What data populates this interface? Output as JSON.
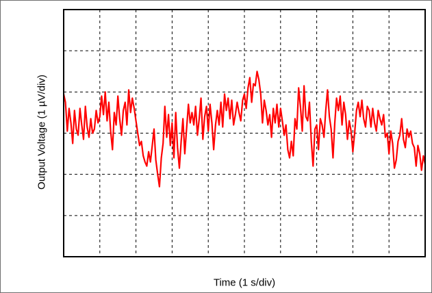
{
  "chart_data": {
    "type": "line",
    "title": "",
    "xlabel": "Time (1 s/div)",
    "ylabel": "Output Voltage (1 µV/div)",
    "x_unit": "div",
    "y_unit": "div",
    "xlim": [
      0,
      10
    ],
    "ylim": [
      -3,
      3
    ],
    "grid": true,
    "series": [
      {
        "color": "#ff0000",
        "x": [
          0.0,
          0.05,
          0.1,
          0.15,
          0.2,
          0.25,
          0.3,
          0.35,
          0.4,
          0.45,
          0.5,
          0.55,
          0.6,
          0.65,
          0.7,
          0.75,
          0.8,
          0.85,
          0.9,
          0.95,
          1.0,
          1.05,
          1.1,
          1.15,
          1.2,
          1.25,
          1.3,
          1.35,
          1.4,
          1.45,
          1.5,
          1.55,
          1.6,
          1.65,
          1.7,
          1.75,
          1.8,
          1.85,
          1.9,
          1.95,
          2.0,
          2.05,
          2.1,
          2.15,
          2.2,
          2.25,
          2.3,
          2.35,
          2.4,
          2.45,
          2.5,
          2.55,
          2.6,
          2.65,
          2.7,
          2.75,
          2.8,
          2.85,
          2.9,
          2.95,
          3.0,
          3.05,
          3.1,
          3.15,
          3.2,
          3.25,
          3.3,
          3.35,
          3.4,
          3.45,
          3.5,
          3.55,
          3.6,
          3.65,
          3.7,
          3.75,
          3.8,
          3.85,
          3.9,
          3.95,
          4.0,
          4.05,
          4.1,
          4.15,
          4.2,
          4.25,
          4.3,
          4.35,
          4.4,
          4.45,
          4.5,
          4.55,
          4.6,
          4.65,
          4.7,
          4.75,
          4.8,
          4.85,
          4.9,
          4.95,
          5.0,
          5.05,
          5.1,
          5.15,
          5.2,
          5.25,
          5.3,
          5.35,
          5.4,
          5.45,
          5.5,
          5.55,
          5.6,
          5.65,
          5.7,
          5.75,
          5.8,
          5.85,
          5.9,
          5.95,
          6.0,
          6.05,
          6.1,
          6.15,
          6.2,
          6.25,
          6.3,
          6.35,
          6.4,
          6.45,
          6.5,
          6.55,
          6.6,
          6.65,
          6.7,
          6.75,
          6.8,
          6.85,
          6.9,
          6.95,
          7.0,
          7.05,
          7.1,
          7.15,
          7.2,
          7.25,
          7.3,
          7.35,
          7.4,
          7.45,
          7.5,
          7.55,
          7.6,
          7.65,
          7.7,
          7.75,
          7.8,
          7.85,
          7.9,
          7.95,
          8.0,
          8.05,
          8.1,
          8.15,
          8.2,
          8.25,
          8.3,
          8.35,
          8.4,
          8.45,
          8.5,
          8.55,
          8.6,
          8.65,
          8.7,
          8.75,
          8.8,
          8.85,
          8.9,
          8.95,
          9.0,
          9.05,
          9.1,
          9.15,
          9.2,
          9.25,
          9.3,
          9.35,
          9.4,
          9.45,
          9.5,
          9.55,
          9.6,
          9.65,
          9.7,
          9.75,
          9.8,
          9.85,
          9.9,
          9.95,
          10.0
        ],
        "y": [
          0.95,
          0.75,
          0.05,
          0.6,
          0.25,
          -0.25,
          0.55,
          0.1,
          -0.05,
          0.6,
          0.2,
          -0.15,
          0.65,
          0.15,
          -0.1,
          0.35,
          0.0,
          0.1,
          0.55,
          0.25,
          0.4,
          0.9,
          0.45,
          1.0,
          0.3,
          0.75,
          0.05,
          -0.4,
          0.5,
          0.2,
          0.9,
          0.35,
          -0.05,
          0.55,
          0.75,
          0.2,
          1.05,
          0.5,
          0.85,
          0.6,
          0.3,
          0.0,
          -0.3,
          -0.2,
          -0.55,
          -0.7,
          -0.8,
          -0.45,
          -0.7,
          -0.3,
          0.1,
          -0.65,
          -1.0,
          -1.3,
          -0.6,
          -0.25,
          0.65,
          -0.1,
          0.45,
          -0.3,
          0.25,
          -0.6,
          0.5,
          -0.35,
          -0.85,
          -0.2,
          0.35,
          -0.5,
          0.1,
          0.7,
          0.25,
          0.5,
          0.2,
          0.65,
          -0.05,
          0.35,
          0.85,
          -0.15,
          0.4,
          0.65,
          0.05,
          0.7,
          0.25,
          -0.4,
          0.2,
          0.55,
          0.2,
          0.75,
          0.15,
          0.95,
          0.55,
          0.85,
          0.35,
          0.8,
          0.2,
          0.45,
          0.75,
          0.5,
          0.3,
          0.8,
          0.95,
          0.6,
          1.1,
          1.35,
          0.75,
          1.2,
          1.15,
          1.5,
          1.3,
          0.95,
          0.25,
          0.8,
          0.55,
          0.2,
          0.45,
          -0.1,
          0.6,
          0.25,
          0.7,
          0.15,
          0.6,
          0.3,
          -0.05,
          0.2,
          -0.4,
          -0.6,
          -0.2,
          -0.55,
          0.35,
          0.1,
          1.1,
          0.65,
          0.05,
          1.15,
          0.4,
          0.3,
          0.75,
          -0.2,
          -0.8,
          0.1,
          0.2,
          -0.4,
          0.35,
          0.2,
          -0.1,
          0.55,
          1.05,
          0.4,
          0.1,
          -0.6,
          0.25,
          0.85,
          0.55,
          0.9,
          0.2,
          0.75,
          0.45,
          -0.15,
          0.3,
          0.05,
          -0.45,
          0.0,
          0.55,
          0.75,
          0.4,
          0.8,
          0.35,
          0.15,
          0.65,
          0.55,
          0.15,
          0.6,
          0.25,
          0.05,
          0.55,
          0.35,
          0.2,
          0.45,
          -0.1,
          0.0,
          -0.5,
          0.05,
          -0.25,
          -0.85,
          -0.65,
          -0.2,
          -0.05,
          0.35,
          -0.15,
          -0.35,
          0.1,
          -0.1,
          0.05,
          -0.25,
          -0.35,
          -0.8,
          -0.3,
          -0.5,
          -0.9,
          -0.55,
          -0.75
        ]
      }
    ]
  }
}
